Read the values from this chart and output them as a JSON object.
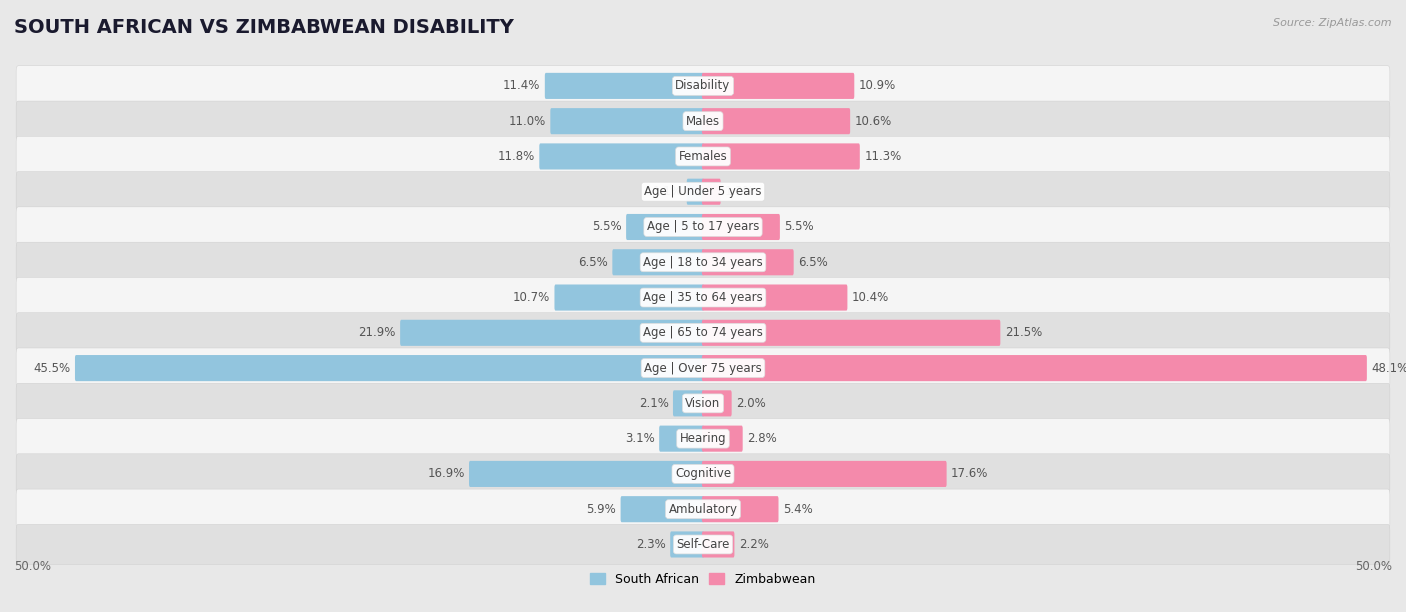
{
  "title": "SOUTH AFRICAN VS ZIMBABWEAN DISABILITY",
  "source": "Source: ZipAtlas.com",
  "categories": [
    "Disability",
    "Males",
    "Females",
    "Age | Under 5 years",
    "Age | 5 to 17 years",
    "Age | 18 to 34 years",
    "Age | 35 to 64 years",
    "Age | 65 to 74 years",
    "Age | Over 75 years",
    "Vision",
    "Hearing",
    "Cognitive",
    "Ambulatory",
    "Self-Care"
  ],
  "south_african": [
    11.4,
    11.0,
    11.8,
    1.1,
    5.5,
    6.5,
    10.7,
    21.9,
    45.5,
    2.1,
    3.1,
    16.9,
    5.9,
    2.3
  ],
  "zimbabwean": [
    10.9,
    10.6,
    11.3,
    1.2,
    5.5,
    6.5,
    10.4,
    21.5,
    48.1,
    2.0,
    2.8,
    17.6,
    5.4,
    2.2
  ],
  "sa_color": "#92c5de",
  "zim_color": "#f48aab",
  "bg_color": "#e8e8e8",
  "row_bg_light": "#f5f5f5",
  "row_bg_dark": "#e0e0e0",
  "axis_max": 50.0,
  "bar_height": 0.58,
  "title_fontsize": 14,
  "label_fontsize": 8.5,
  "value_fontsize": 8.5,
  "legend_fontsize": 9,
  "source_fontsize": 8
}
